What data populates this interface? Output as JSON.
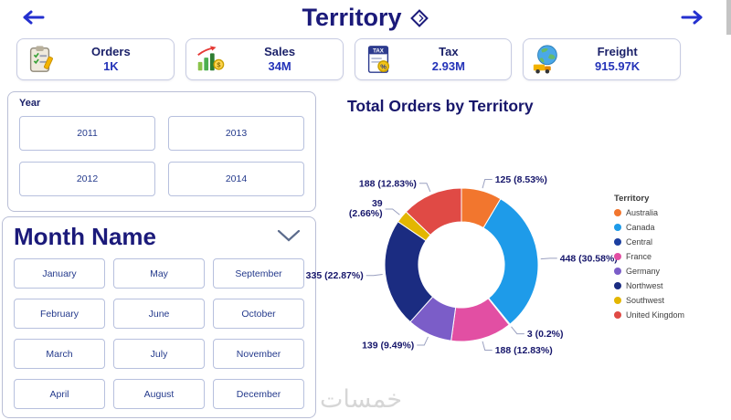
{
  "header": {
    "title": "Territory"
  },
  "cards": [
    {
      "label": "Orders",
      "value": "1K",
      "icon": "orders-icon"
    },
    {
      "label": "Sales",
      "value": "34M",
      "icon": "sales-icon"
    },
    {
      "label": "Tax",
      "value": "2.93M",
      "icon": "tax-icon"
    },
    {
      "label": "Freight",
      "value": "915.97K",
      "icon": "freight-icon"
    }
  ],
  "year_slicer": {
    "title": "Year",
    "options": [
      "2011",
      "2013",
      "2012",
      "2014"
    ]
  },
  "month_slicer": {
    "title": "Month Name",
    "options": [
      "January",
      "May",
      "September",
      "February",
      "June",
      "October",
      "March",
      "July",
      "November",
      "April",
      "August",
      "December"
    ]
  },
  "chart_data": {
    "type": "donut",
    "title": "Total Orders by Territory",
    "legend_title": "Territory",
    "legend_position": "right",
    "start_angle_deg": -90,
    "direction": "clockwise",
    "inner_radius_ratio": 0.56,
    "series": [
      {
        "name": "Australia",
        "value": 125,
        "pct": "8.53%",
        "color": "#F2762E"
      },
      {
        "name": "Canada",
        "value": 448,
        "pct": "30.58%",
        "color": "#1E9BE9"
      },
      {
        "name": "Central",
        "value": 3,
        "pct": "0.2%",
        "color": "#1C3FA0"
      },
      {
        "name": "France",
        "value": 188,
        "pct": "12.83%",
        "color": "#E24FA3"
      },
      {
        "name": "Germany",
        "value": 139,
        "pct": "9.49%",
        "color": "#7B5DC8"
      },
      {
        "name": "Northwest",
        "value": 335,
        "pct": "22.87%",
        "color": "#1B2C81"
      },
      {
        "name": "Southwest",
        "value": 39,
        "pct": "2.66%",
        "color": "#E3B602",
        "label_wrap": true
      },
      {
        "name": "United Kingdom",
        "value": 188,
        "pct": "12.83%",
        "color": "#E04A45"
      }
    ]
  },
  "watermark": "خمسات",
  "colors": {
    "accent": "#1b1a7a",
    "value_text": "#2433b8",
    "arrow": "#2430cf",
    "label_text": "#16166b"
  }
}
